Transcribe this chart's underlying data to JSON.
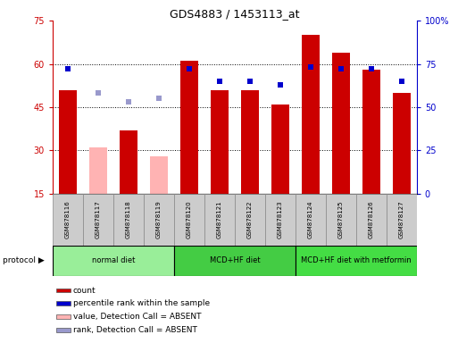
{
  "title": "GDS4883 / 1453113_at",
  "samples": [
    "GSM878116",
    "GSM878117",
    "GSM878118",
    "GSM878119",
    "GSM878120",
    "GSM878121",
    "GSM878122",
    "GSM878123",
    "GSM878124",
    "GSM878125",
    "GSM878126",
    "GSM878127"
  ],
  "bar_values": [
    51,
    31,
    37,
    28,
    61,
    51,
    51,
    46,
    70,
    64,
    58,
    50
  ],
  "bar_absent": [
    false,
    true,
    false,
    true,
    false,
    false,
    false,
    false,
    false,
    false,
    false,
    false
  ],
  "percentile_values": [
    72,
    58,
    53,
    55,
    72,
    65,
    65,
    63,
    73,
    72,
    72,
    65
  ],
  "percentile_absent": [
    false,
    true,
    true,
    true,
    false,
    false,
    false,
    false,
    false,
    false,
    false,
    false
  ],
  "ylim_left": [
    15,
    75
  ],
  "ylim_right": [
    0,
    100
  ],
  "yticks_left": [
    15,
    30,
    45,
    60,
    75
  ],
  "yticks_right": [
    0,
    25,
    50,
    75,
    100
  ],
  "color_bar_present": "#cc0000",
  "color_bar_absent": "#ffb3b3",
  "color_pct_present": "#0000cc",
  "color_pct_absent": "#9999cc",
  "bg_plot": "#ffffff",
  "bg_xlabel": "#cccccc",
  "protocol_groups": [
    {
      "label": "normal diet",
      "start": 0,
      "end": 3,
      "color": "#99ee99"
    },
    {
      "label": "MCD+HF diet",
      "start": 4,
      "end": 7,
      "color": "#44cc44"
    },
    {
      "label": "MCD+HF diet with metformin",
      "start": 8,
      "end": 11,
      "color": "#44dd44"
    }
  ],
  "legend_items": [
    {
      "color": "#cc0000",
      "label": "count"
    },
    {
      "color": "#0000cc",
      "label": "percentile rank within the sample"
    },
    {
      "color": "#ffb3b3",
      "label": "value, Detection Call = ABSENT"
    },
    {
      "color": "#9999cc",
      "label": "rank, Detection Call = ABSENT"
    }
  ],
  "bar_width": 0.6,
  "pct_marker_size": 5
}
